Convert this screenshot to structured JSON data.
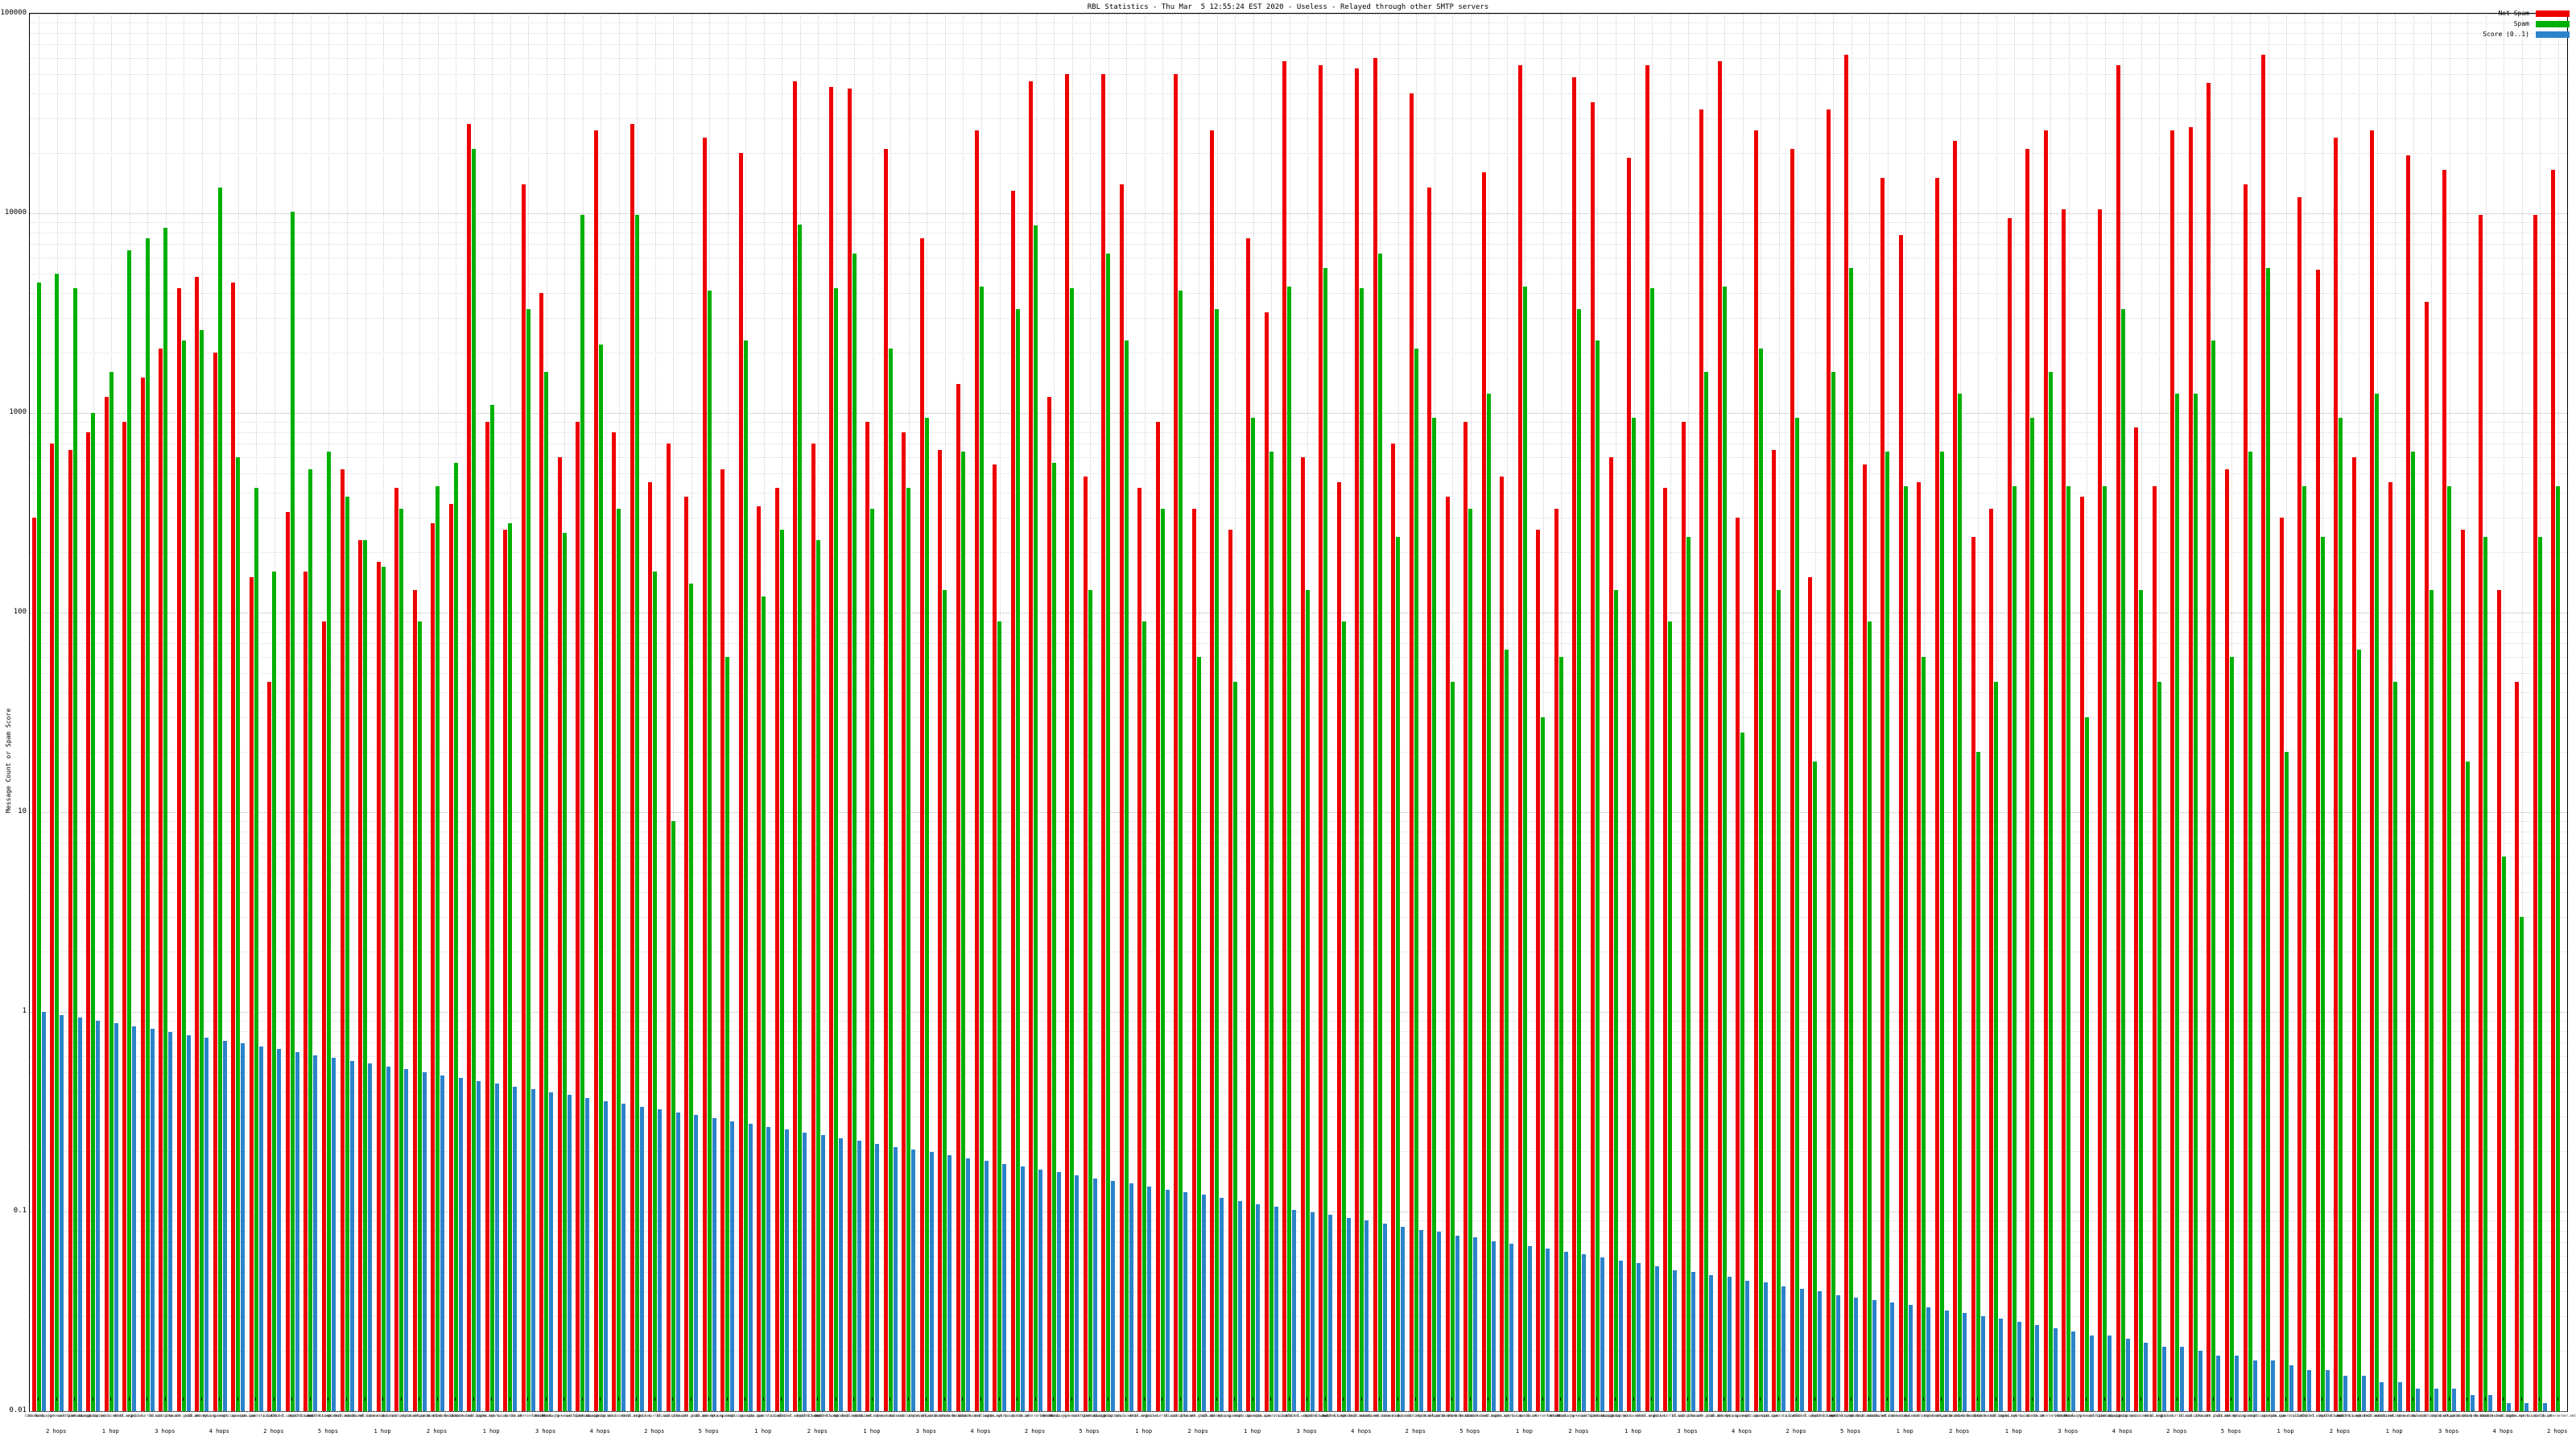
{
  "title": "RBL Statistics - Thu Mar  5 12:55:24 EST 2020 - Useless - Relayed through other SMTP servers",
  "chart_data": {
    "type": "bar",
    "title": "RBL Statistics - Thu Mar  5 12:55:24 EST 2020 - Useless - Relayed through other SMTP servers",
    "xlabel": "",
    "ylabel": "Message Count or Spam Score",
    "y_scale": "log",
    "ylim": [
      0.01,
      100000
    ],
    "grid": true,
    "legend_position": "top-right",
    "yticks": [
      {
        "v": 100000,
        "t": "100000"
      },
      {
        "v": 10000,
        "t": "10000"
      },
      {
        "v": 1000,
        "t": "1000"
      },
      {
        "v": 100,
        "t": "100"
      },
      {
        "v": 10,
        "t": "10"
      },
      {
        "v": 1,
        "t": "1"
      },
      {
        "v": 0.1,
        "t": "0.1"
      },
      {
        "v": 0.01,
        "t": "0.01"
      }
    ],
    "categories": [
      "list.dnswl.org",
      "hostkarma.junkemailfilter.com",
      "zen.spamhaus.org",
      "bl.spamcop.net",
      "b.barracudacentral.org",
      "dnsbl.sorbs.net",
      "psbl.surriel.com",
      "bl.mailspike.net",
      "truncate.gbudb.net",
      "cbl.abuseat.org",
      "dyna.spamrats.com",
      "noptr.spamrats.com",
      "spam.spamrats.com",
      "all.s5h.net",
      "dnsbl-1.uceprotect.net",
      "dnsbl-2.uceprotect.net",
      "dnsbl-3.uceprotect.net",
      "ix.dnsbl.manitu.net",
      "combined.abuse.ch",
      "drone.abuse.ch",
      "dul.dnsbl.sorbs.net",
      "smtp.dnsbl.sorbs.net",
      "spam.dnsbl.sorbs.net",
      "web.dnsbl.sorbs.net",
      "zombie.dnsbl.sorbs.net",
      "bogons.cymru.com",
      "tor.dan.me.uk",
      "rbl.interserver.net",
      "list.dnswl.org",
      "hostkarma.junkemailfilter.com",
      "zen.spamhaus.org",
      "bl.spamcop.net",
      "b.barracudacentral.org",
      "dnsbl.sorbs.net",
      "psbl.surriel.com",
      "bl.mailspike.net",
      "truncate.gbudb.net",
      "cbl.abuseat.org",
      "dyna.spamrats.com",
      "noptr.spamrats.com",
      "spam.spamrats.com",
      "all.s5h.net",
      "dnsbl-1.uceprotect.net",
      "dnsbl-2.uceprotect.net",
      "dnsbl-3.uceprotect.net",
      "ix.dnsbl.manitu.net",
      "combined.abuse.ch",
      "drone.abuse.ch",
      "dul.dnsbl.sorbs.net",
      "smtp.dnsbl.sorbs.net",
      "spam.dnsbl.sorbs.net",
      "web.dnsbl.sorbs.net",
      "zombie.dnsbl.sorbs.net",
      "bogons.cymru.com",
      "tor.dan.me.uk",
      "rbl.interserver.net",
      "list.dnswl.org",
      "hostkarma.junkemailfilter.com",
      "zen.spamhaus.org",
      "bl.spamcop.net",
      "b.barracudacentral.org",
      "dnsbl.sorbs.net",
      "psbl.surriel.com",
      "bl.mailspike.net",
      "truncate.gbudb.net",
      "cbl.abuseat.org",
      "dyna.spamrats.com",
      "noptr.spamrats.com",
      "spam.spamrats.com",
      "all.s5h.net",
      "dnsbl-1.uceprotect.net",
      "dnsbl-2.uceprotect.net",
      "dnsbl-3.uceprotect.net",
      "ix.dnsbl.manitu.net",
      "combined.abuse.ch",
      "drone.abuse.ch",
      "dul.dnsbl.sorbs.net",
      "smtp.dnsbl.sorbs.net",
      "spam.dnsbl.sorbs.net",
      "web.dnsbl.sorbs.net",
      "zombie.dnsbl.sorbs.net",
      "bogons.cymru.com",
      "tor.dan.me.uk",
      "rbl.interserver.net",
      "list.dnswl.org",
      "hostkarma.junkemailfilter.com",
      "zen.spamhaus.org",
      "bl.spamcop.net",
      "b.barracudacentral.org",
      "dnsbl.sorbs.net",
      "psbl.surriel.com",
      "bl.mailspike.net",
      "truncate.gbudb.net",
      "cbl.abuseat.org",
      "dyna.spamrats.com",
      "noptr.spamrats.com",
      "spam.spamrats.com",
      "all.s5h.net",
      "dnsbl-1.uceprotect.net",
      "dnsbl-2.uceprotect.net",
      "dnsbl-3.uceprotect.net",
      "ix.dnsbl.manitu.net",
      "combined.abuse.ch",
      "drone.abuse.ch",
      "dul.dnsbl.sorbs.net",
      "smtp.dnsbl.sorbs.net",
      "spam.dnsbl.sorbs.net",
      "web.dnsbl.sorbs.net",
      "zombie.dnsbl.sorbs.net",
      "bogons.cymru.com",
      "tor.dan.me.uk",
      "rbl.interserver.net",
      "list.dnswl.org",
      "hostkarma.junkemailfilter.com",
      "zen.spamhaus.org",
      "bl.spamcop.net",
      "b.barracudacentral.org",
      "dnsbl.sorbs.net",
      "psbl.surriel.com",
      "bl.mailspike.net",
      "truncate.gbudb.net",
      "cbl.abuseat.org",
      "dyna.spamrats.com",
      "noptr.spamrats.com",
      "spam.spamrats.com",
      "all.s5h.net",
      "dnsbl-1.uceprotect.net",
      "dnsbl-2.uceprotect.net",
      "dnsbl-3.uceprotect.net",
      "ix.dnsbl.manitu.net",
      "combined.abuse.ch",
      "drone.abuse.ch",
      "dul.dnsbl.sorbs.net",
      "smtp.dnsbl.sorbs.net",
      "spam.dnsbl.sorbs.net",
      "web.dnsbl.sorbs.net",
      "zombie.dnsbl.sorbs.net",
      "bogons.cymru.com",
      "tor.dan.me.uk",
      "rbl.interserver.net"
    ],
    "hop_marks": [
      {
        "i": 1,
        "label": "2 hops"
      },
      {
        "i": 4,
        "label": "1 hop"
      },
      {
        "i": 7,
        "label": "3 hops"
      },
      {
        "i": 10,
        "label": "4 hops"
      },
      {
        "i": 13,
        "label": "2 hops"
      },
      {
        "i": 16,
        "label": "5 hops"
      },
      {
        "i": 19,
        "label": "1 hop"
      },
      {
        "i": 22,
        "label": "2 hops"
      },
      {
        "i": 25,
        "label": "1 hop"
      },
      {
        "i": 28,
        "label": "3 hops"
      },
      {
        "i": 31,
        "label": "4 hops"
      },
      {
        "i": 34,
        "label": "2 hops"
      },
      {
        "i": 37,
        "label": "5 hops"
      },
      {
        "i": 40,
        "label": "1 hop"
      },
      {
        "i": 43,
        "label": "2 hops"
      },
      {
        "i": 46,
        "label": "1 hop"
      },
      {
        "i": 49,
        "label": "3 hops"
      },
      {
        "i": 52,
        "label": "4 hops"
      },
      {
        "i": 55,
        "label": "2 hops"
      },
      {
        "i": 58,
        "label": "5 hops"
      },
      {
        "i": 61,
        "label": "1 hop"
      },
      {
        "i": 64,
        "label": "2 hops"
      },
      {
        "i": 67,
        "label": "1 hop"
      },
      {
        "i": 70,
        "label": "3 hops"
      },
      {
        "i": 73,
        "label": "4 hops"
      },
      {
        "i": 76,
        "label": "2 hops"
      },
      {
        "i": 79,
        "label": "5 hops"
      },
      {
        "i": 82,
        "label": "1 hop"
      },
      {
        "i": 85,
        "label": "2 hops"
      },
      {
        "i": 88,
        "label": "1 hop"
      },
      {
        "i": 91,
        "label": "3 hops"
      },
      {
        "i": 94,
        "label": "4 hops"
      },
      {
        "i": 97,
        "label": "2 hops"
      },
      {
        "i": 100,
        "label": "5 hops"
      },
      {
        "i": 103,
        "label": "1 hop"
      },
      {
        "i": 106,
        "label": "2 hops"
      },
      {
        "i": 109,
        "label": "1 hop"
      },
      {
        "i": 112,
        "label": "3 hops"
      },
      {
        "i": 115,
        "label": "4 hops"
      },
      {
        "i": 118,
        "label": "2 hops"
      },
      {
        "i": 121,
        "label": "5 hops"
      },
      {
        "i": 124,
        "label": "1 hop"
      },
      {
        "i": 127,
        "label": "2 hops"
      },
      {
        "i": 130,
        "label": "1 hop"
      },
      {
        "i": 133,
        "label": "3 hops"
      },
      {
        "i": 136,
        "label": "4 hops"
      },
      {
        "i": 139,
        "label": "2 hops"
      }
    ],
    "series": [
      {
        "name": "Not Spam",
        "color": "#ee0000",
        "values": [
          300,
          700,
          650,
          800,
          1200,
          900,
          1500,
          2100,
          4200,
          4800,
          2000,
          4500,
          150,
          45,
          320,
          160,
          90,
          520,
          230,
          180,
          420,
          130,
          280,
          350,
          28000,
          900,
          260,
          14000,
          4000,
          600,
          900,
          26000,
          800,
          28000,
          450,
          700,
          380,
          24000,
          520,
          20000,
          340,
          420,
          46000,
          700,
          43000,
          42000,
          900,
          21000,
          800,
          7500,
          650,
          1400,
          26000,
          550,
          13000,
          46000,
          1200,
          50000,
          480,
          50000,
          14000,
          420,
          900,
          50000,
          330,
          26000,
          260,
          7500,
          3200,
          58000,
          600,
          55000,
          450,
          53000,
          60000,
          700,
          40000,
          13500,
          380,
          900,
          16000,
          480,
          55000,
          260,
          330,
          48000,
          36000,
          600,
          19000,
          55000,
          420,
          900,
          33000,
          58000,
          300,
          26000,
          650,
          21000,
          150,
          33000,
          62000,
          550,
          15000,
          7800,
          450,
          15000,
          23000,
          240,
          330,
          9500,
          21000,
          26000,
          10500,
          380,
          10500,
          55000,
          850,
          430,
          26000,
          27000,
          45000,
          520,
          14000,
          62000,
          300,
          12000,
          5200,
          24000,
          600,
          26000,
          450,
          19500,
          3600,
          16500,
          260,
          9800,
          130,
          45,
          9800,
          16500
        ]
      },
      {
        "name": "Spam",
        "color": "#00b000",
        "values": [
          4500,
          5000,
          4200,
          1000,
          1600,
          6500,
          7500,
          8500,
          2300,
          2600,
          13500,
          600,
          420,
          160,
          10200,
          520,
          640,
          380,
          230,
          170,
          330,
          90,
          430,
          560,
          21000,
          1100,
          280,
          3300,
          1600,
          250,
          9800,
          2200,
          330,
          9800,
          160,
          9,
          140,
          4100,
          60,
          2300,
          120,
          260,
          8800,
          230,
          4200,
          6300,
          330,
          2100,
          420,
          950,
          130,
          640,
          4300,
          90,
          3300,
          8700,
          560,
          4200,
          130,
          6300,
          2300,
          90,
          330,
          4100,
          60,
          3300,
          45,
          950,
          640,
          4300,
          130,
          5300,
          90,
          4200,
          6300,
          240,
          2100,
          950,
          45,
          330,
          1250,
          65,
          4300,
          30,
          60,
          3300,
          2300,
          130,
          950,
          4200,
          90,
          240,
          1600,
          4300,
          25,
          2100,
          130,
          950,
          18,
          1600,
          5300,
          90,
          640,
          430,
          60,
          640,
          1250,
          20,
          45,
          430,
          950,
          1600,
          430,
          30,
          430,
          3300,
          130,
          45,
          1250,
          1250,
          2300,
          60,
          640,
          5300,
          20,
          430,
          240,
          950,
          65,
          1250,
          45,
          640,
          130,
          430,
          18,
          240,
          6,
          3,
          240,
          430
        ]
      },
      {
        "name": "Score (0..1)",
        "color": "#2b83c9",
        "values": [
          1.0,
          0.967,
          0.936,
          0.905,
          0.876,
          0.847,
          0.82,
          0.793,
          0.767,
          0.742,
          0.718,
          0.694,
          0.672,
          0.65,
          0.629,
          0.608,
          0.588,
          0.569,
          0.551,
          0.533,
          0.515,
          0.499,
          0.482,
          0.467,
          0.451,
          0.437,
          0.423,
          0.409,
          0.396,
          0.383,
          0.37,
          0.358,
          0.347,
          0.335,
          0.324,
          0.314,
          0.304,
          0.294,
          0.284,
          0.275,
          0.266,
          0.257,
          0.249,
          0.241,
          0.233,
          0.226,
          0.218,
          0.211,
          0.204,
          0.198,
          0.191,
          0.185,
          0.179,
          0.173,
          0.168,
          0.162,
          0.157,
          0.152,
          0.147,
          0.142,
          0.138,
          0.133,
          0.129,
          0.125,
          0.121,
          0.117,
          0.113,
          0.109,
          0.106,
          0.102,
          0.099,
          0.096,
          0.093,
          0.09,
          0.087,
          0.084,
          0.081,
          0.079,
          0.076,
          0.074,
          0.071,
          0.069,
          0.067,
          0.065,
          0.063,
          0.061,
          0.059,
          0.057,
          0.055,
          0.053,
          0.051,
          0.05,
          0.048,
          0.047,
          0.045,
          0.044,
          0.042,
          0.041,
          0.04,
          0.038,
          0.037,
          0.036,
          0.035,
          0.034,
          0.033,
          0.032,
          0.031,
          0.03,
          0.029,
          0.028,
          0.027,
          0.026,
          0.025,
          0.024,
          0.024,
          0.023,
          0.022,
          0.021,
          0.021,
          0.02,
          0.019,
          0.019,
          0.018,
          0.018,
          0.017,
          0.016,
          0.016,
          0.015,
          0.015,
          0.014,
          0.014,
          0.013,
          0.013,
          0.013,
          0.012,
          0.012,
          0.011,
          0.011,
          0.011,
          0.01
        ]
      }
    ]
  }
}
